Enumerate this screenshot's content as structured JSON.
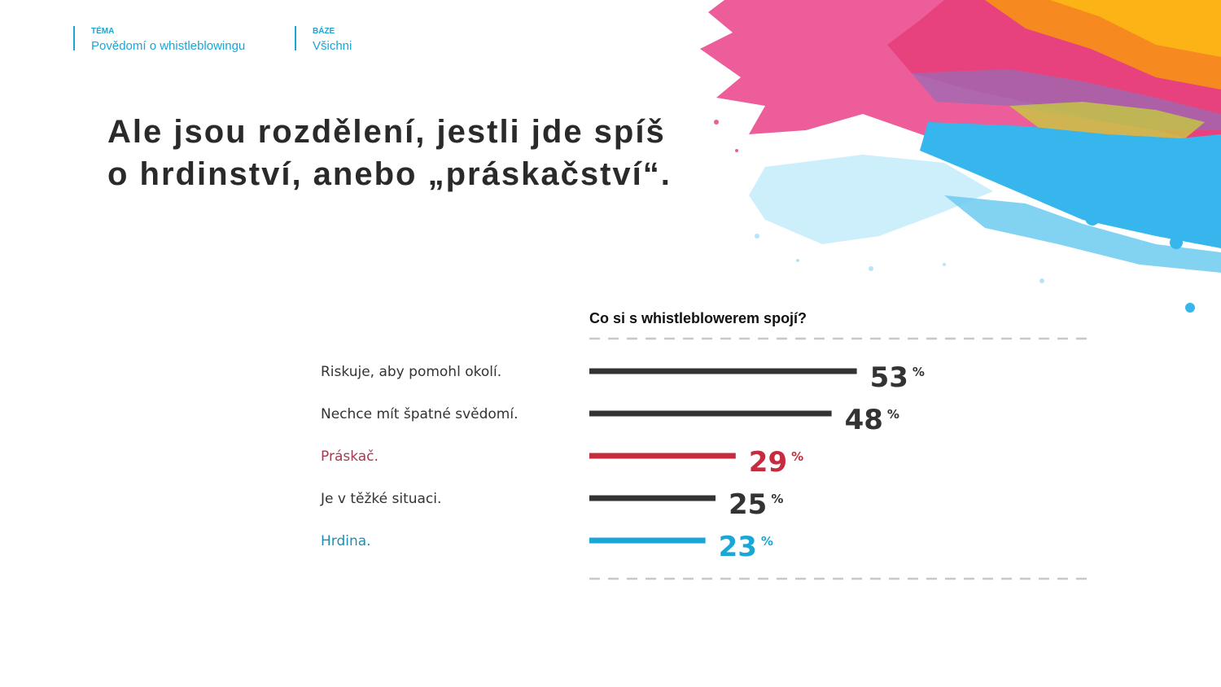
{
  "header": {
    "topic": {
      "label": "TÉMA",
      "value": "Povědomí o whistleblowingu"
    },
    "base": {
      "label": "BÁZE",
      "value": "Všichni"
    }
  },
  "headline": "Ale jsou rozdělení, jestli jde spíš\no hrdinství, anebo „práskačství“.",
  "colors": {
    "accent": "#1aa6d6",
    "dark_bar": "#333333",
    "red": "#c62c3f",
    "blue": "#1aa6d6"
  },
  "chart_data": {
    "type": "bar",
    "orientation": "horizontal",
    "title": "Co si s whistleblowerem spojí?",
    "unit": "%",
    "xlim": [
      0,
      100
    ],
    "grid": false,
    "categories": [
      "Riskuje, aby pomohl okolí.",
      "Nechce mít špatné svědomí.",
      "Práskač.",
      "Je v těžké situaci.",
      "Hrdina."
    ],
    "values": [
      53,
      48,
      29,
      25,
      23
    ],
    "value_labels": [
      "53",
      "48",
      "29",
      "25",
      "23"
    ],
    "bar_colors": [
      "#333333",
      "#333333",
      "#c62c3f",
      "#333333",
      "#1aa6d6"
    ],
    "label_colors": [
      "#333333",
      "#333333",
      "#a23a52",
      "#333333",
      "#1a8fb8"
    ]
  }
}
